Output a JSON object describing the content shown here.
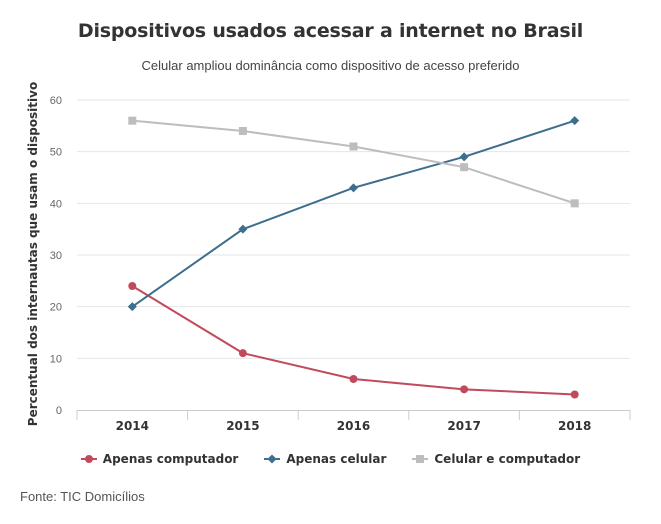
{
  "chart_data": {
    "type": "line",
    "title": "Dispositivos usados acessar a internet no Brasil",
    "subtitle": "Celular ampliou dominância como dispositivo de acesso preferido",
    "ylabel": "Percentual dos internautas que usam o dispositivo",
    "xlabel": "",
    "categories": [
      "2014",
      "2015",
      "2016",
      "2017",
      "2018"
    ],
    "ylim": [
      0,
      60
    ],
    "yticks": [
      0,
      10,
      20,
      30,
      40,
      50,
      60
    ],
    "grid": true,
    "legend_position": "bottom",
    "series": [
      {
        "name": "Apenas computador",
        "color": "#c14b5c",
        "marker": "circle",
        "values": [
          24,
          11,
          6,
          4,
          3
        ]
      },
      {
        "name": "Apenas celular",
        "color": "#3d6e8d",
        "marker": "diamond",
        "values": [
          20,
          35,
          43,
          49,
          56
        ]
      },
      {
        "name": "Celular e computador",
        "color": "#bdbdbd",
        "marker": "square",
        "values": [
          56,
          54,
          51,
          47,
          40
        ]
      }
    ],
    "source": "Fonte: TIC Domicílios"
  }
}
